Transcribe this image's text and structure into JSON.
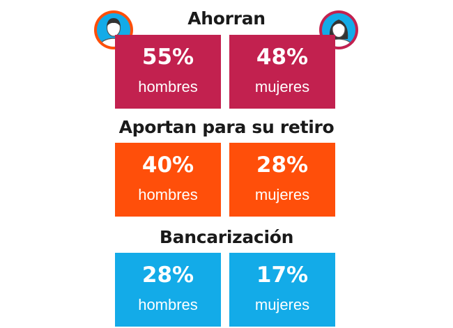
{
  "colors": {
    "ahorran": "#c2214f",
    "aportan": "#ff4f0a",
    "bancarizacion": "#13abe8",
    "avatar_man_ring": "#ff4f0a",
    "avatar_woman_ring": "#c2214f",
    "avatar_inner": "#13abe8"
  },
  "icons": {
    "man": "man-avatar-icon",
    "woman": "woman-avatar-icon"
  },
  "sections": {
    "ahorran": {
      "title": "Ahorran",
      "men": {
        "value": "55%",
        "label": "hombres"
      },
      "women": {
        "value": "48%",
        "label": "mujeres"
      }
    },
    "aportan": {
      "title": "Aportan para su retiro",
      "men": {
        "value": "40%",
        "label": "hombres"
      },
      "women": {
        "value": "28%",
        "label": "mujeres"
      }
    },
    "bancarizacion": {
      "title": "Bancarización",
      "men": {
        "value": "28%",
        "label": "hombres"
      },
      "women": {
        "value": "17%",
        "label": "mujeres"
      }
    }
  }
}
